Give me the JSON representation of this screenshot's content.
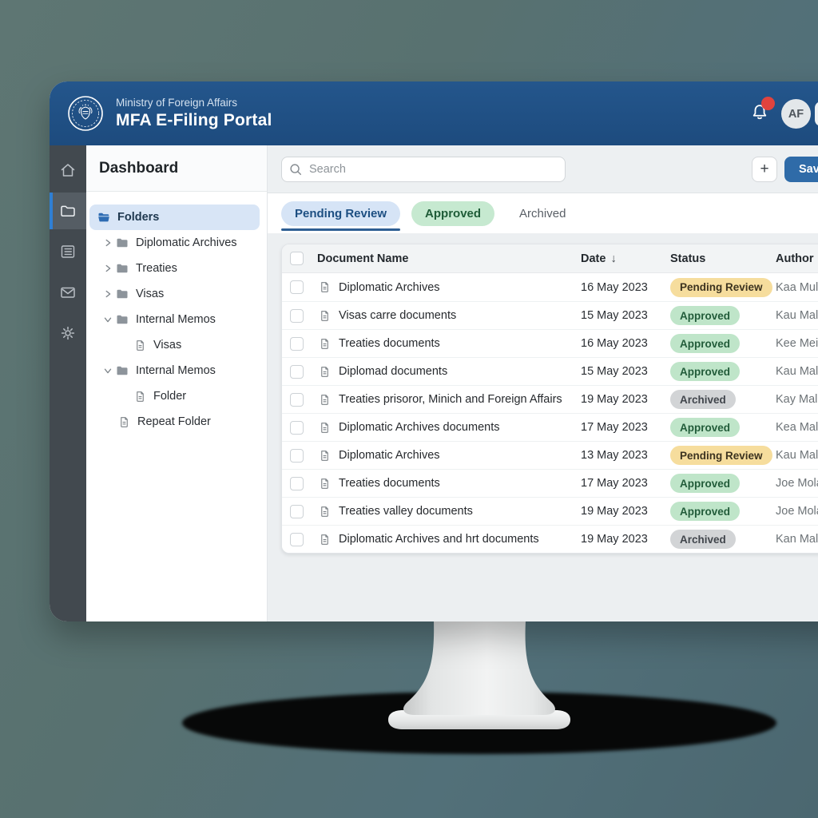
{
  "colors": {
    "header_blue": "#1d4b7e",
    "accent_blue": "#2f6ba8",
    "rail_active_accent": "#2f7fd4",
    "selected_folder_bg": "#d8e5f6",
    "tab_active_bg": "#d6e4f6",
    "pending_badge_bg": "#f6dd9d",
    "approved_badge_bg": "#bfe5c9",
    "archived_badge_bg": "#d2d4d6",
    "notification_badge_red": "#e0433e"
  },
  "header": {
    "ministry": "Ministry of Foreign Affairs",
    "portal_title": "MFA E-Filing Portal",
    "logo_icon": "state-seal-icon",
    "bell_icon": "notification-bell-icon",
    "has_notification_badge": true,
    "avatar_initials": "AF"
  },
  "rail": {
    "items": [
      {
        "id": "home",
        "icon": "home-icon",
        "active": false
      },
      {
        "id": "folders",
        "icon": "folder-icon",
        "active": true
      },
      {
        "id": "records",
        "icon": "ledger-icon",
        "active": false
      },
      {
        "id": "mail",
        "icon": "mail-icon",
        "active": false
      },
      {
        "id": "settings",
        "icon": "gear-icon",
        "active": false
      }
    ]
  },
  "sidebar": {
    "title": "Dashboard",
    "tree": [
      {
        "label": "Folders",
        "kind": "folder",
        "selected": true,
        "chevron": null,
        "indent": "selected"
      },
      {
        "label": "Diplomatic Archives",
        "kind": "folder",
        "selected": false,
        "chevron": "right",
        "indent": "folder"
      },
      {
        "label": "Treaties",
        "kind": "folder",
        "selected": false,
        "chevron": "right",
        "indent": "folder"
      },
      {
        "label": "Visas",
        "kind": "folder",
        "selected": false,
        "chevron": "right",
        "indent": "folder"
      },
      {
        "label": "Internal Memos",
        "kind": "folder",
        "selected": false,
        "chevron": "down",
        "indent": "folder"
      },
      {
        "label": "Visas",
        "kind": "doc",
        "selected": false,
        "chevron": null,
        "indent": "doc2"
      },
      {
        "label": "Internal Memos",
        "kind": "folder",
        "selected": false,
        "chevron": "down",
        "indent": "folder"
      },
      {
        "label": "Folder",
        "kind": "doc",
        "selected": false,
        "chevron": null,
        "indent": "doc2"
      },
      {
        "label": "Repeat Folder",
        "kind": "doc",
        "selected": false,
        "chevron": null,
        "indent": "doc1"
      }
    ]
  },
  "toolbar": {
    "search_placeholder": "Search",
    "add_button_label": "+",
    "save_button_label": "Save"
  },
  "tabs": [
    {
      "label": "Pending Review",
      "variant": "blue",
      "active": true
    },
    {
      "label": "Approved",
      "variant": "green",
      "active": false
    },
    {
      "label": "Archived",
      "variant": "plain",
      "active": false
    }
  ],
  "table": {
    "columns": [
      "Document Name",
      "Date",
      "Status",
      "Author"
    ],
    "sort": {
      "column": "Date",
      "direction": "desc",
      "indicator": "↓"
    },
    "rows": [
      {
        "name": "Diplomatic Archives",
        "date": "16 May 2023",
        "status": "Pending Review",
        "author": "Kaa Mulan"
      },
      {
        "name": "Visas carre documents",
        "date": "15 May 2023",
        "status": "Approved",
        "author": "Kau Malan"
      },
      {
        "name": "Treaties documents",
        "date": "16 May 2023",
        "status": "Approved",
        "author": "Kee Meian"
      },
      {
        "name": "Diplomad documents",
        "date": "15 May 2023",
        "status": "Approved",
        "author": "Kau Malan"
      },
      {
        "name": "Treaties prisoror, Minich and Foreign Affairs",
        "date": "19 May 2023",
        "status": "Archived",
        "author": "Kay Malan"
      },
      {
        "name": "Diplomatic Archives documents",
        "date": "17 May 2023",
        "status": "Approved",
        "author": "Kea Malan"
      },
      {
        "name": "Diplomatic Archives",
        "date": "13 May 2023",
        "status": "Pending Review",
        "author": "Kau Malan"
      },
      {
        "name": "Treaties documents",
        "date": "17 May 2023",
        "status": "Approved",
        "author": "Joe Molan"
      },
      {
        "name": "Treaties valley documents",
        "date": "19 May 2023",
        "status": "Approved",
        "author": "Joe Molan"
      },
      {
        "name": "Diplomatic Archives and hrt documents",
        "date": "19 May 2023",
        "status": "Archived",
        "author": "Kan Malan"
      }
    ]
  }
}
